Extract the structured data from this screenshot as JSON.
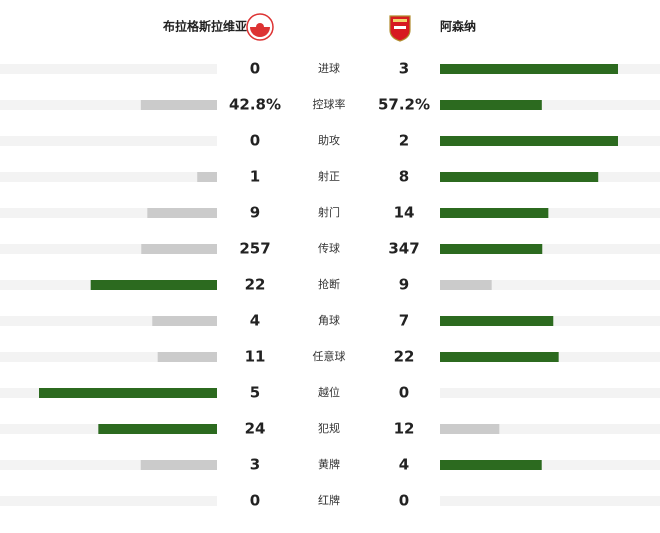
{
  "header": {
    "home_team": "布拉格斯拉维亚",
    "away_team": "阿森纳"
  },
  "colors": {
    "leader": "#2c6a1f",
    "trailer": "#cbcbcb",
    "track": "#f3f3f3"
  },
  "stats": [
    {
      "name": "进球",
      "home": 0,
      "away": 3
    },
    {
      "name": "控球率",
      "home": 42.8,
      "away": 57.2,
      "home_label": "42.8%",
      "away_label": "57.2%"
    },
    {
      "name": "助攻",
      "home": 0,
      "away": 2
    },
    {
      "name": "射正",
      "home": 1,
      "away": 8
    },
    {
      "name": "射门",
      "home": 9,
      "away": 14
    },
    {
      "name": "传球",
      "home": 257,
      "away": 347
    },
    {
      "name": "抢断",
      "home": 22,
      "away": 9
    },
    {
      "name": "角球",
      "home": 4,
      "away": 7
    },
    {
      "name": "任意球",
      "home": 11,
      "away": 22
    },
    {
      "name": "越位",
      "home": 5,
      "away": 0
    },
    {
      "name": "犯规",
      "home": 24,
      "away": 12
    },
    {
      "name": "黄牌",
      "home": 3,
      "away": 4
    },
    {
      "name": "红牌",
      "home": 0,
      "away": 0
    }
  ]
}
